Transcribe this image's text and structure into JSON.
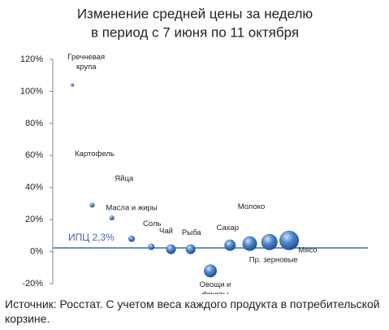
{
  "chart_data": {
    "type": "bubble",
    "title": [
      "Изменение средней цены за неделю",
      "в период с 7 июня по 11 октября"
    ],
    "series": [
      {
        "name": null,
        "color": "#3f78c0",
        "labels": [
          "Гречневая крупа",
          "Картофель",
          "Яйца",
          "Масла и жиры",
          "Соль",
          "Чай",
          "Рыба",
          "Овощи и фрукты",
          "Сахар",
          "Молоко",
          "Пр. зерновые",
          "Мясо"
        ],
        "x": [
          1,
          2,
          3,
          4,
          5,
          6,
          7,
          8,
          9,
          10,
          11,
          12
        ],
        "values": [
          104,
          29,
          21,
          8,
          3,
          1.5,
          1.5,
          -12,
          4,
          5,
          6,
          7
        ],
        "sizes": [
          2,
          3,
          3,
          4,
          4,
          6,
          6,
          8,
          7,
          9,
          10,
          12
        ]
      }
    ],
    "xlim": [
      0,
      16
    ],
    "ylim": [
      -20,
      120
    ],
    "yticks": [
      {
        "value": -20,
        "label": "-20%"
      },
      {
        "value": 0,
        "label": "0%"
      },
      {
        "value": 20,
        "label": "20%"
      },
      {
        "value": 40,
        "label": "40%"
      },
      {
        "value": 60,
        "label": "60%"
      },
      {
        "value": 80,
        "label": "80%"
      },
      {
        "value": 100,
        "label": "100%"
      },
      {
        "value": 120,
        "label": "120%"
      }
    ],
    "reference_line": {
      "value": 2.3,
      "label": "ИПЦ 2,3%",
      "color": "#3a6fa8"
    },
    "note": "Источник: Росстат. С учетом веса каждого продукта в потребительской корзине."
  }
}
